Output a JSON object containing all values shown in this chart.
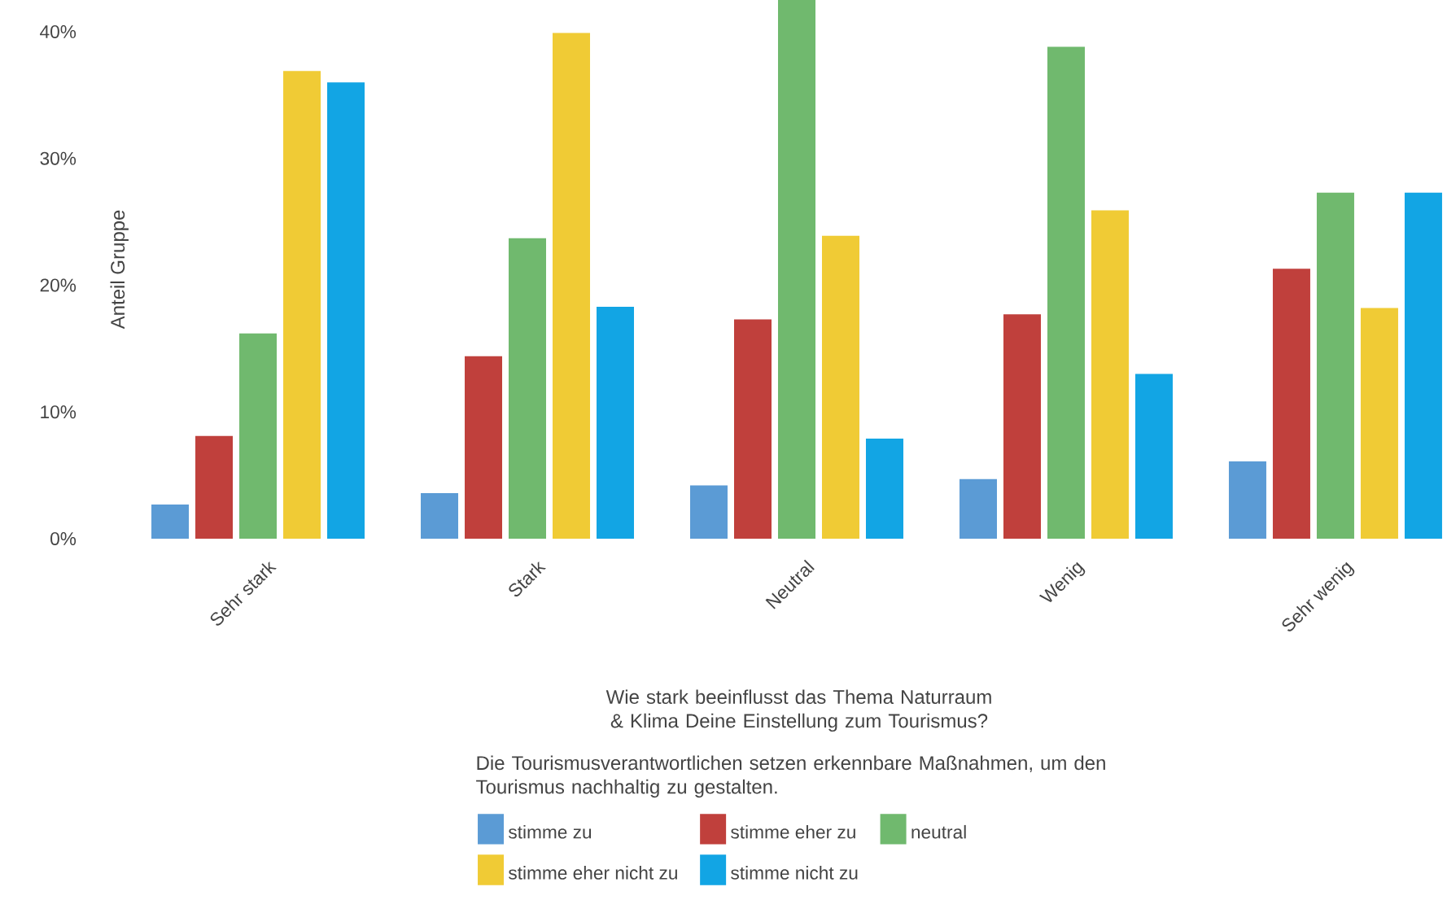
{
  "chart_data": {
    "type": "bar",
    "xlabel": "Wie stark beeinflusst das Thema Naturraum & Klima Deine Einstellung zum Tourismus?",
    "ylabel": "Anteil Gruppe",
    "legend_title": "Die Tourismusverantwortlichen setzen erkennbare Maßnahmen, um den Tourismus nachhaltig zu gestalten.",
    "legend": "bottom",
    "categories": [
      "Sehr stark",
      "Stark",
      "Neutral",
      "Wenig",
      "Sehr wenig"
    ],
    "ylim": [
      0,
      42.5
    ],
    "yticks": [
      {
        "value": 0,
        "label": "0%"
      },
      {
        "value": 10,
        "label": "10%"
      },
      {
        "value": 20,
        "label": "20%"
      },
      {
        "value": 30,
        "label": "30%"
      },
      {
        "value": 40,
        "label": "40%"
      }
    ],
    "series": [
      {
        "name": "stimme zu",
        "color": "#5b9bd5",
        "values": [
          2.7,
          3.6,
          4.2,
          4.7,
          6.1
        ]
      },
      {
        "name": "stimme eher zu",
        "color": "#c0403c",
        "values": [
          8.1,
          14.4,
          17.3,
          17.7,
          21.3
        ]
      },
      {
        "name": "neutral",
        "color": "#70b96e",
        "values": [
          16.2,
          23.7,
          42.5,
          38.8,
          27.3
        ]
      },
      {
        "name": "stimme eher nicht zu",
        "color": "#f0cb35",
        "values": [
          36.9,
          39.9,
          23.9,
          25.9,
          18.2
        ]
      },
      {
        "name": "stimme nicht zu",
        "color": "#12a5e4",
        "values": [
          36.0,
          18.3,
          7.9,
          13.0,
          27.3
        ]
      }
    ]
  }
}
